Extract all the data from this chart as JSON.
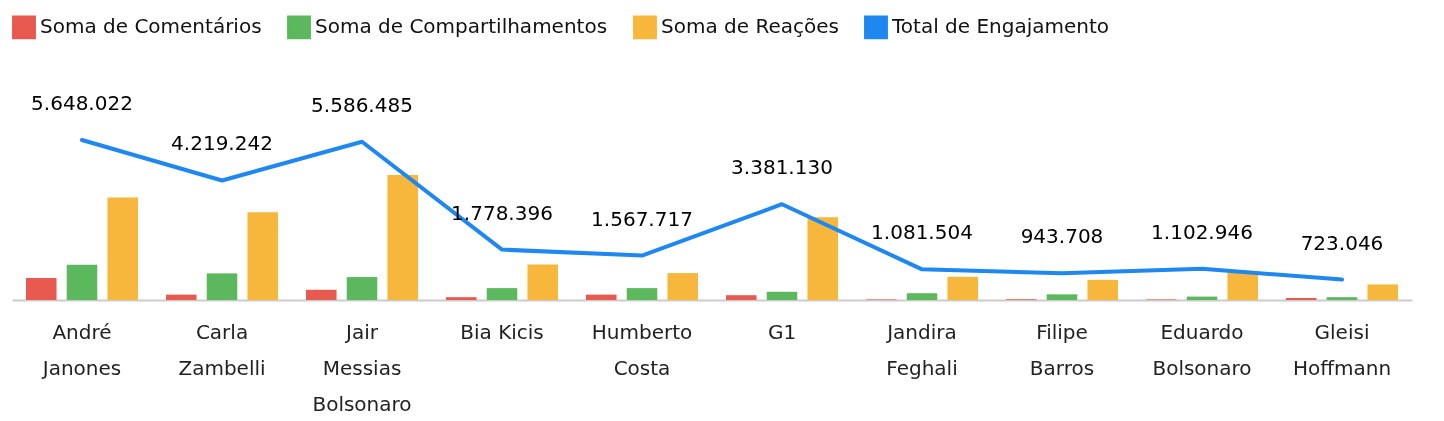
{
  "chart_data": {
    "type": "bar",
    "categories": [
      "André\nJanones",
      "Carla\nZambelli",
      "Jair\nMessias\nBolsonaro",
      "Bia Kicis",
      "Humberto\nCosta",
      "G1",
      "Jandira\nFeghali",
      "Filipe\nBarros",
      "Eduardo\nBolsonaro",
      "Gleisi\nHoffmann"
    ],
    "legend": "top",
    "series": [
      {
        "name": "Soma de Comentários",
        "color": "#e8594f",
        "values": [
          780000,
          190000,
          360000,
          100000,
          190000,
          170000,
          20000,
          30000,
          20000,
          70000
        ]
      },
      {
        "name": "Soma de Compartilhamentos",
        "color": "#5cb85c",
        "values": [
          1240000,
          940000,
          810000,
          420000,
          420000,
          290000,
          240000,
          200000,
          120000,
          100000
        ]
      },
      {
        "name": "Soma de Reações",
        "color": "#f6b73c",
        "values": [
          3620000,
          3100000,
          4410000,
          1250000,
          950000,
          2920000,
          820000,
          710000,
          960000,
          550000
        ]
      },
      {
        "name": "Total de Engajamento",
        "color": "#1e88f0",
        "type": "line",
        "values": [
          5648022,
          4219242,
          5586485,
          1778396,
          1567717,
          3381130,
          1081504,
          943708,
          1102946,
          723046
        ],
        "value_labels": [
          "5.648.022",
          "4.219.242",
          "5.586.485",
          "1.778.396",
          "1.567.717",
          "3.381.130",
          "1.081.504",
          "943.708",
          "1.102.946",
          "723.046"
        ]
      }
    ]
  }
}
